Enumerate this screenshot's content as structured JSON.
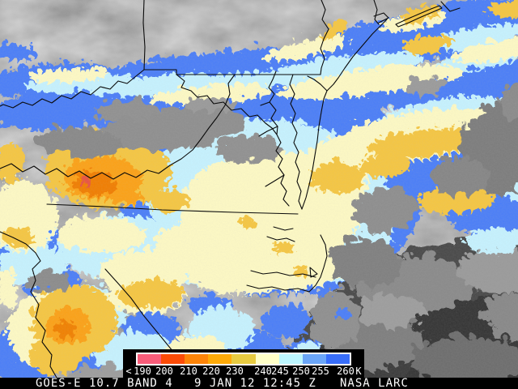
{
  "status_bar": {
    "satellite": "GOES-E 10.7 BAND 4",
    "timestamp": "9 JAN 12 12:45 Z",
    "credit": "NASA LARC"
  },
  "legend": {
    "tick_labels": [
      "<",
      "190",
      "200",
      "210",
      "220",
      "230",
      "240",
      "245",
      "250",
      "255",
      "260",
      "K"
    ],
    "segment_colors": [
      "#f85c79",
      "#fb4b07",
      "#fd8408",
      "#fdaa08",
      "#e7cb41",
      "#ffffc8",
      "#bdf6ff",
      "#6ba6f8",
      "#386efa"
    ],
    "units": "K",
    "frame_color": "#ffffff",
    "background": "#000000"
  },
  "map_palette": {
    "coldest_orange": "#fba112",
    "gold": "#f5c642",
    "cream": "#fdf9c4",
    "pale_cyan": "#c6f2fe",
    "blue": "#4b7ef7",
    "warm_gray": "#939393",
    "clear_dark": "#454545",
    "border_line": "#0a0a0a"
  }
}
